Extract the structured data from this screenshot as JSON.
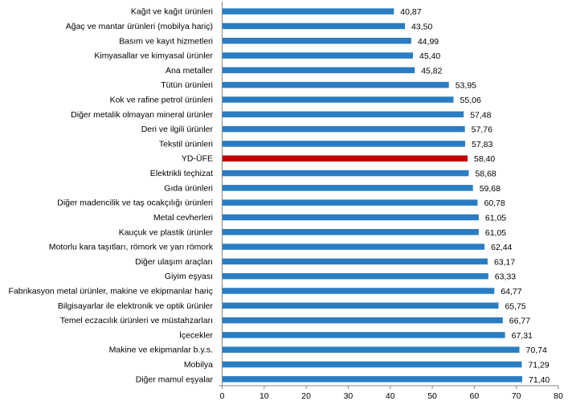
{
  "chart_data": {
    "type": "bar",
    "orientation": "horizontal",
    "title": "",
    "xlabel": "",
    "ylabel": "",
    "xlim": [
      0,
      80
    ],
    "xticks": [
      0,
      10,
      20,
      30,
      40,
      50,
      60,
      70,
      80
    ],
    "grid": false,
    "categories": [
      "Kağıt ve kağıt ürünleri",
      "Ağaç ve mantar ürünleri (mobilya hariç)",
      "Basım ve kayıt hizmetleri",
      "Kimyasallar ve kimyasal ürünler",
      "Ana metaller",
      "Tütün ürünleri",
      "Kok ve rafine petrol ürünleri",
      "Diğer metalik olmayan mineral ürünler",
      "Deri ve ilgili ürünler",
      "Tekstil ürünleri",
      "YD-ÜFE",
      "Elektrikli teçhizat",
      "Gıda ürünleri",
      "Diğer madencilik ve taş ocakçılığı ürünleri",
      "Metal cevherleri",
      "Kauçuk ve plastik ürünler",
      "Motorlu kara taşıtları, römork ve yarı römork",
      "Diğer ulaşım araçları",
      "Giyim eşyası",
      "Fabrikasyon metal ürünler, makine ve ekipmanlar hariç",
      "Bilgisayarlar ile elektronik ve optik ürünler",
      "Temel eczacılık ürünleri ve müstahzarları",
      "İçecekler",
      "Makine ve ekipmanlar b.y.s.",
      "Mobilya",
      "Diğer mamul eşyalar"
    ],
    "values": [
      40.87,
      43.5,
      44.99,
      45.4,
      45.82,
      53.95,
      55.06,
      57.48,
      57.76,
      57.83,
      58.4,
      58.68,
      59.68,
      60.78,
      61.05,
      61.05,
      62.44,
      63.17,
      63.33,
      64.77,
      65.75,
      66.77,
      67.31,
      70.74,
      71.29,
      71.4
    ],
    "value_labels": [
      "40,87",
      "43,50",
      "44,99",
      "45,40",
      "45,82",
      "53,95",
      "55,06",
      "57,48",
      "57,76",
      "57,83",
      "58,40",
      "58,68",
      "59,68",
      "60,78",
      "61,05",
      "61,05",
      "62,44",
      "63,17",
      "63,33",
      "64,77",
      "65,75",
      "66,77",
      "67,31",
      "70,74",
      "71,29",
      "71,40"
    ],
    "highlight_category": "YD-ÜFE",
    "colors": {
      "bar": "#2a7dc2",
      "highlight": "#c00000",
      "axis": "#868686"
    }
  }
}
